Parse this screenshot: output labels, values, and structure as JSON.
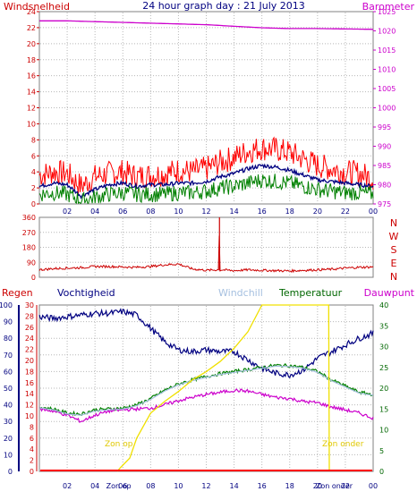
{
  "header": {
    "title": "24 hour graph day : 21 July 2013",
    "left_label": "Windsnelheid",
    "right_label": "Barometer"
  },
  "colors": {
    "frame": "#808080",
    "grid": "#b8b8b8",
    "wind_axis": "#cc0000",
    "baro_axis": "#cc00cc",
    "title": "#000080",
    "dir_axis": "#cc0000",
    "regen_axis": "#cc0000",
    "vocht_axis": "#000080",
    "temp_axis": "#006600",
    "windchill": "#a6c0e0",
    "dauwpunt": "#cc00cc",
    "sun": "#f0e000"
  },
  "wind_labels": [
    "0",
    "2",
    "4",
    "6",
    "8",
    "10",
    "12",
    "14",
    "16",
    "18",
    "20",
    "22",
    "24"
  ],
  "baro_labels": [
    "975",
    "980",
    "985",
    "990",
    "995",
    "1000",
    "1005",
    "1010",
    "1015",
    "1020",
    "1025"
  ],
  "time_labels": [
    "02",
    "04",
    "06",
    "08",
    "10",
    "12",
    "14",
    "16",
    "18",
    "20",
    "22",
    "00"
  ],
  "direction": {
    "left_labels": [
      "0",
      "90",
      "180",
      "270",
      "360"
    ],
    "compass": [
      "N",
      "W",
      "S",
      "E",
      "N"
    ]
  },
  "bottom": {
    "legend": {
      "regen": "Regen",
      "vochtigheid": "Vochtigheid",
      "windchill": "Windchill",
      "temperatuur": "Temperatuur",
      "dauwpunt": "Dauwpunt"
    },
    "left1_labels": [
      "0",
      "10",
      "20",
      "30",
      "40",
      "50",
      "60",
      "70",
      "80",
      "90",
      "100"
    ],
    "left2_labels": [
      "0",
      "2",
      "4",
      "6",
      "8",
      "10",
      "12",
      "14",
      "16",
      "18",
      "20",
      "22",
      "24",
      "26",
      "28",
      "30"
    ],
    "right_labels": [
      "0",
      "5",
      "10",
      "15",
      "20",
      "25",
      "30",
      "35",
      "40"
    ],
    "sun_up": "Zon op",
    "sun_down": "Zon onder",
    "time_labels": [
      "02",
      "04",
      "06",
      "08",
      "10",
      "12",
      "14",
      "16",
      "18",
      "20",
      "22",
      "00"
    ],
    "time_extra": [
      "Zon op",
      "Zon onder"
    ]
  },
  "chart_data": [
    {
      "type": "line",
      "title": "24 hour graph day : 21 July 2013",
      "ylabel": "Windsnelheid",
      "y2label": "Barometer",
      "x_range": [
        0,
        24
      ],
      "ylim": [
        0,
        24
      ],
      "y2lim": [
        975,
        1025
      ],
      "series": [
        {
          "name": "",
          "axis": "wind",
          "color": "#ff0000",
          "x": [
            0,
            1,
            2,
            3,
            4,
            5,
            6,
            7,
            8,
            9,
            10,
            11,
            12,
            13,
            14,
            15,
            16,
            17,
            18,
            19,
            20,
            21,
            22,
            23,
            24
          ],
          "values": [
            3.6,
            4.0,
            3.8,
            2.2,
            3.4,
            3.8,
            4.0,
            3.4,
            3.6,
            3.8,
            4.2,
            4.0,
            4.4,
            5.2,
            5.8,
            6.6,
            7.0,
            6.8,
            6.4,
            5.6,
            4.8,
            4.4,
            4.0,
            3.8,
            3.2
          ]
        },
        {
          "name": "",
          "axis": "wind",
          "color": "#000080",
          "x": [
            0,
            1,
            2,
            3,
            4,
            5,
            6,
            7,
            8,
            9,
            10,
            11,
            12,
            13,
            14,
            15,
            16,
            17,
            18,
            19,
            20,
            21,
            22,
            23,
            24
          ],
          "values": [
            2.2,
            2.6,
            2.4,
            1.0,
            1.8,
            2.4,
            2.6,
            2.2,
            2.4,
            2.4,
            2.6,
            2.6,
            2.8,
            3.4,
            3.8,
            4.4,
            4.8,
            4.6,
            4.2,
            3.6,
            3.0,
            2.8,
            2.6,
            2.4,
            2.2
          ]
        },
        {
          "name": "",
          "axis": "wind",
          "color": "#008000",
          "x": [
            0,
            1,
            2,
            3,
            4,
            5,
            6,
            7,
            8,
            9,
            10,
            11,
            12,
            13,
            14,
            15,
            16,
            17,
            18,
            19,
            20,
            21,
            22,
            23,
            24
          ],
          "values": [
            1.2,
            1.4,
            1.2,
            0.4,
            0.8,
            1.2,
            1.4,
            1.2,
            1.2,
            1.2,
            1.4,
            1.4,
            1.6,
            2.0,
            2.2,
            2.6,
            3.0,
            2.8,
            2.6,
            2.2,
            1.8,
            1.6,
            1.4,
            1.4,
            1.2
          ]
        },
        {
          "name": "",
          "axis": "baro",
          "color": "#cc00cc",
          "x": [
            0,
            2,
            4,
            6,
            8,
            10,
            12,
            14,
            16,
            18,
            20,
            22,
            24
          ],
          "values": [
            1022.6,
            1022.6,
            1022.4,
            1022.2,
            1022.0,
            1021.8,
            1021.6,
            1021.2,
            1020.8,
            1020.6,
            1020.6,
            1020.5,
            1020.4
          ]
        }
      ]
    },
    {
      "type": "line",
      "ylim": [
        0,
        360
      ],
      "x_range": [
        0,
        24
      ],
      "series": [
        {
          "name": "",
          "color": "#cc0000",
          "x": [
            0,
            1,
            2,
            3,
            4,
            5,
            6,
            7,
            8,
            9,
            10,
            11,
            12,
            12.9,
            12.95,
            13.0,
            13.05,
            14,
            15,
            16,
            17,
            18,
            19,
            20,
            21,
            22,
            23,
            24
          ],
          "values": [
            45,
            52,
            55,
            58,
            65,
            65,
            62,
            60,
            65,
            75,
            80,
            50,
            42,
            45,
            360,
            40,
            45,
            40,
            45,
            42,
            40,
            38,
            42,
            45,
            48,
            55,
            60,
            62
          ]
        }
      ]
    },
    {
      "type": "line",
      "x_range": [
        0,
        24
      ],
      "y_left_ranges": [
        [
          0,
          100
        ],
        [
          0,
          30
        ]
      ],
      "y_right_range": [
        0,
        40
      ],
      "series": [
        {
          "name": "Vochtigheid",
          "axis": "left",
          "color": "#000080",
          "x": [
            0,
            1,
            2,
            3,
            4,
            5,
            6,
            7,
            8,
            9,
            10,
            11,
            12,
            13,
            14,
            15,
            16,
            17,
            18,
            19,
            20,
            21,
            22,
            23,
            24
          ],
          "values": [
            93,
            92,
            93,
            94,
            95,
            95,
            96,
            94,
            86,
            78,
            73,
            72,
            73,
            72,
            72,
            67,
            62,
            59,
            58,
            61,
            68,
            72,
            76,
            80,
            83
          ]
        },
        {
          "name": "Temperatuur",
          "axis": "right",
          "color": "#008000",
          "x": [
            0,
            1,
            2,
            3,
            4,
            5,
            6,
            7,
            8,
            9,
            10,
            11,
            12,
            13,
            14,
            15,
            16,
            17,
            18,
            19,
            20,
            21,
            22,
            23,
            24
          ],
          "values": [
            15.5,
            15.0,
            14.0,
            13.8,
            14.8,
            15.0,
            15.2,
            16.0,
            17.5,
            19.5,
            21.0,
            22.0,
            22.8,
            23.5,
            24.0,
            24.5,
            25.0,
            25.5,
            25.4,
            25.0,
            24.0,
            22.0,
            20.5,
            19.0,
            18.5
          ]
        },
        {
          "name": "Dauwpunt",
          "axis": "right",
          "color": "#cc00cc",
          "x": [
            0,
            1,
            2,
            3,
            4,
            5,
            6,
            7,
            8,
            9,
            10,
            11,
            12,
            13,
            14,
            15,
            16,
            17,
            18,
            19,
            20,
            21,
            22,
            23,
            24
          ],
          "values": [
            15.0,
            14.5,
            13.5,
            12.0,
            13.5,
            14.5,
            14.8,
            15.0,
            15.2,
            16.0,
            17.0,
            17.8,
            18.5,
            19.0,
            19.5,
            19.3,
            18.5,
            17.8,
            17.5,
            16.8,
            16.5,
            15.5,
            14.8,
            14.0,
            12.8
          ]
        },
        {
          "name": "Windchill",
          "axis": "right",
          "color": "#a6c0e0",
          "x": [
            0,
            1,
            2,
            3,
            4,
            5,
            6,
            7,
            8,
            9,
            10,
            11,
            12,
            13,
            14,
            15,
            16,
            17,
            18,
            19,
            20,
            21,
            22,
            23,
            24
          ],
          "values": [
            15.3,
            14.8,
            13.8,
            13.5,
            14.5,
            14.8,
            15.0,
            15.8,
            17.3,
            19.3,
            20.8,
            21.8,
            22.6,
            23.3,
            23.8,
            24.3,
            24.8,
            25.3,
            25.2,
            24.8,
            23.8,
            21.8,
            20.3,
            18.8,
            18.3
          ]
        },
        {
          "name": "",
          "axis": "sun",
          "color": "#f0e000",
          "x": [
            5.6,
            5.8,
            6.5,
            7.0,
            8.0,
            9.0,
            10.0,
            11.0,
            12.0,
            13.0,
            14.0,
            15.0,
            16.0,
            18.0,
            20.0,
            20.8,
            20.85
          ],
          "values": [
            0,
            2,
            8,
            20,
            35,
            42,
            48,
            55,
            60,
            66,
            74,
            84,
            100,
            100,
            100,
            100,
            0
          ]
        },
        {
          "name": "Regen",
          "axis": "regen",
          "color": "#ff0000",
          "x": [
            0,
            24
          ],
          "values": [
            0,
            0
          ]
        }
      ]
    }
  ]
}
